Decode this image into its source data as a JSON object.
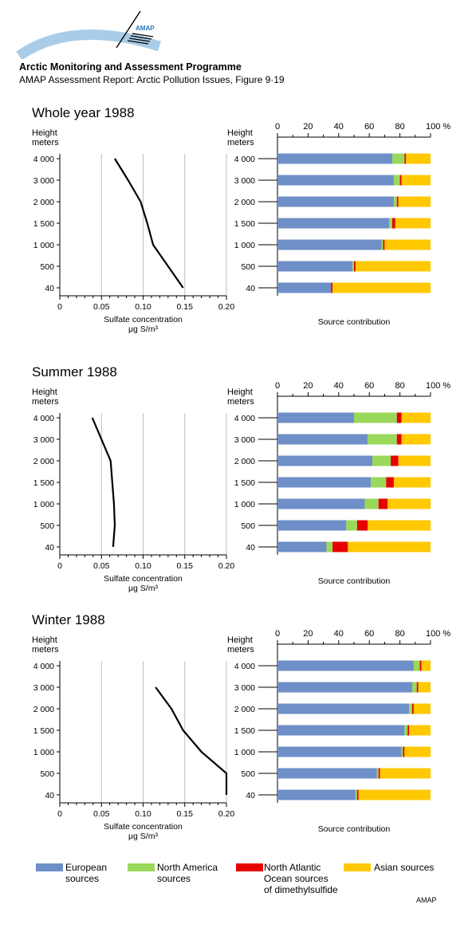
{
  "header": {
    "logo_text": "AMAP",
    "organization": "Arctic Monitoring and Assessment Programme",
    "report": "AMAP Assessment Report: Arctic Pollution Issues, Figure 9·19"
  },
  "labels": {
    "height": "Height",
    "meters": "meters",
    "conc_line1": "Sulfate concentration",
    "conc_line2": "μg S/m³",
    "source": "Source contribution"
  },
  "colors": {
    "european": "#6e8fc7",
    "north_america": "#9ad85a",
    "north_atlantic": "#e60000",
    "asian": "#ffc800"
  },
  "legend": {
    "european": [
      "European",
      "sources"
    ],
    "north_america": [
      "North America",
      "sources"
    ],
    "north_atlantic": [
      "North Atlantic",
      "Ocean sources",
      "of dimethylsulfide"
    ],
    "asian": [
      "Asian sources"
    ]
  },
  "credit": "AMAP",
  "chart_data": [
    {
      "type": "line",
      "title": "Whole year 1988",
      "xlabel": "Sulfate concentration μg S/m³",
      "ylabel": "Height meters",
      "xlim": [
        0,
        0.2
      ],
      "x_ticks": [
        "0",
        "0.05",
        "0.10",
        "0.15",
        "0.20"
      ],
      "height_levels": [
        "4 000",
        "3 000",
        "2 000",
        "1 500",
        "1 000",
        "500",
        "40"
      ],
      "concentration": [
        0.066,
        0.082,
        0.097,
        0.105,
        0.112,
        0.13,
        0.148
      ],
      "grid": "vertical",
      "source_contribution": {
        "type": "bar",
        "orientation": "horizontal",
        "stacked": true,
        "x_ticks": [
          "0",
          "20",
          "40",
          "60",
          "80",
          "100 %"
        ],
        "series": [
          {
            "name": "European sources",
            "values": [
              75,
              76,
              76,
              73,
              68,
              49,
              35
            ]
          },
          {
            "name": "North America sources",
            "values": [
              8,
              4,
              2,
              2,
              1,
              1,
              0
            ]
          },
          {
            "name": "North Atlantic Ocean sources of dimethylsulfide",
            "values": [
              1,
              1,
              1,
              2,
              1,
              1,
              1
            ]
          },
          {
            "name": "Asian sources",
            "values": [
              16,
              19,
              21,
              23,
              30,
              49,
              64
            ]
          }
        ]
      }
    },
    {
      "type": "line",
      "title": "Summer 1988",
      "xlabel": "Sulfate concentration μg S/m³",
      "ylabel": "Height meters",
      "xlim": [
        0,
        0.2
      ],
      "x_ticks": [
        "0",
        "0.05",
        "0.10",
        "0.15",
        "0.20"
      ],
      "height_levels": [
        "4 000",
        "3 000",
        "2 000",
        "1 500",
        "1 000",
        "500",
        "40"
      ],
      "concentration": [
        0.039,
        0.05,
        0.061,
        0.063,
        0.065,
        0.066,
        0.064
      ],
      "grid": "vertical",
      "source_contribution": {
        "type": "bar",
        "orientation": "horizontal",
        "stacked": true,
        "x_ticks": [
          "0",
          "20",
          "40",
          "60",
          "80",
          "100 %"
        ],
        "series": [
          {
            "name": "European sources",
            "values": [
              50,
              59,
              62,
              61,
              57,
              45,
              32
            ]
          },
          {
            "name": "North America sources",
            "values": [
              28,
              19,
              12,
              10,
              9,
              7,
              4
            ]
          },
          {
            "name": "North Atlantic Ocean sources of dimethylsulfide",
            "values": [
              3,
              3,
              5,
              5,
              6,
              7,
              10
            ]
          },
          {
            "name": "Asian sources",
            "values": [
              19,
              19,
              21,
              24,
              28,
              41,
              54
            ]
          }
        ]
      }
    },
    {
      "type": "line",
      "title": "Winter 1988",
      "xlabel": "Sulfate concentration μg S/m³",
      "ylabel": "Height meters",
      "xlim": [
        0,
        0.2
      ],
      "x_ticks": [
        "0",
        "0.05",
        "0.10",
        "0.15",
        "0.20"
      ],
      "height_levels": [
        "4 000",
        "3 000",
        "2 000",
        "1 500",
        "1 000",
        "500",
        "40"
      ],
      "concentration": [
        null,
        0.115,
        0.134,
        0.148,
        0.17,
        0.2,
        0.2
      ],
      "grid": "vertical",
      "source_contribution": {
        "type": "bar",
        "orientation": "horizontal",
        "stacked": true,
        "x_ticks": [
          "0",
          "20",
          "40",
          "60",
          "80",
          "100 %"
        ],
        "series": [
          {
            "name": "European sources",
            "values": [
              89,
              88,
              86,
              83,
              81,
              65,
              51
            ]
          },
          {
            "name": "North America sources",
            "values": [
              4,
              3,
              2,
              2,
              1,
              1,
              1
            ]
          },
          {
            "name": "North Atlantic Ocean sources of dimethylsulfide",
            "values": [
              1,
              1,
              1,
              1,
              1,
              1,
              1
            ]
          },
          {
            "name": "Asian sources",
            "values": [
              6,
              8,
              11,
              14,
              17,
              33,
              47
            ]
          }
        ]
      }
    }
  ]
}
